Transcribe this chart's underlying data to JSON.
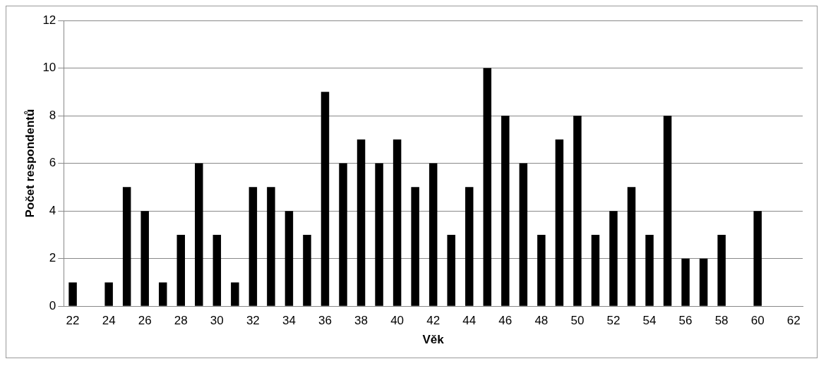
{
  "chart_data": {
    "type": "bar",
    "xlabel": "Věk",
    "ylabel": "Počet respondentů",
    "categories": [
      "22",
      null,
      "24",
      null,
      "26",
      null,
      "28",
      null,
      "30",
      null,
      "32",
      null,
      "34",
      null,
      "36",
      null,
      "38",
      null,
      "40",
      null,
      "42",
      null,
      "44",
      null,
      "46",
      null,
      "48",
      null,
      "50",
      null,
      "52",
      null,
      "54",
      null,
      "56",
      null,
      "58",
      null,
      "60",
      null,
      "62"
    ],
    "values": [
      1,
      0,
      1,
      5,
      4,
      1,
      3,
      6,
      3,
      1,
      5,
      5,
      4,
      3,
      9,
      6,
      7,
      6,
      7,
      5,
      6,
      3,
      5,
      10,
      8,
      6,
      3,
      7,
      8,
      3,
      4,
      5,
      3,
      8,
      2,
      2,
      3,
      0,
      4,
      0,
      0
    ],
    "color": "#000000",
    "ylim": [
      0,
      12
    ],
    "yticks": [
      0,
      2,
      4,
      6,
      8,
      10,
      12
    ],
    "grid": "y",
    "legend": false
  }
}
